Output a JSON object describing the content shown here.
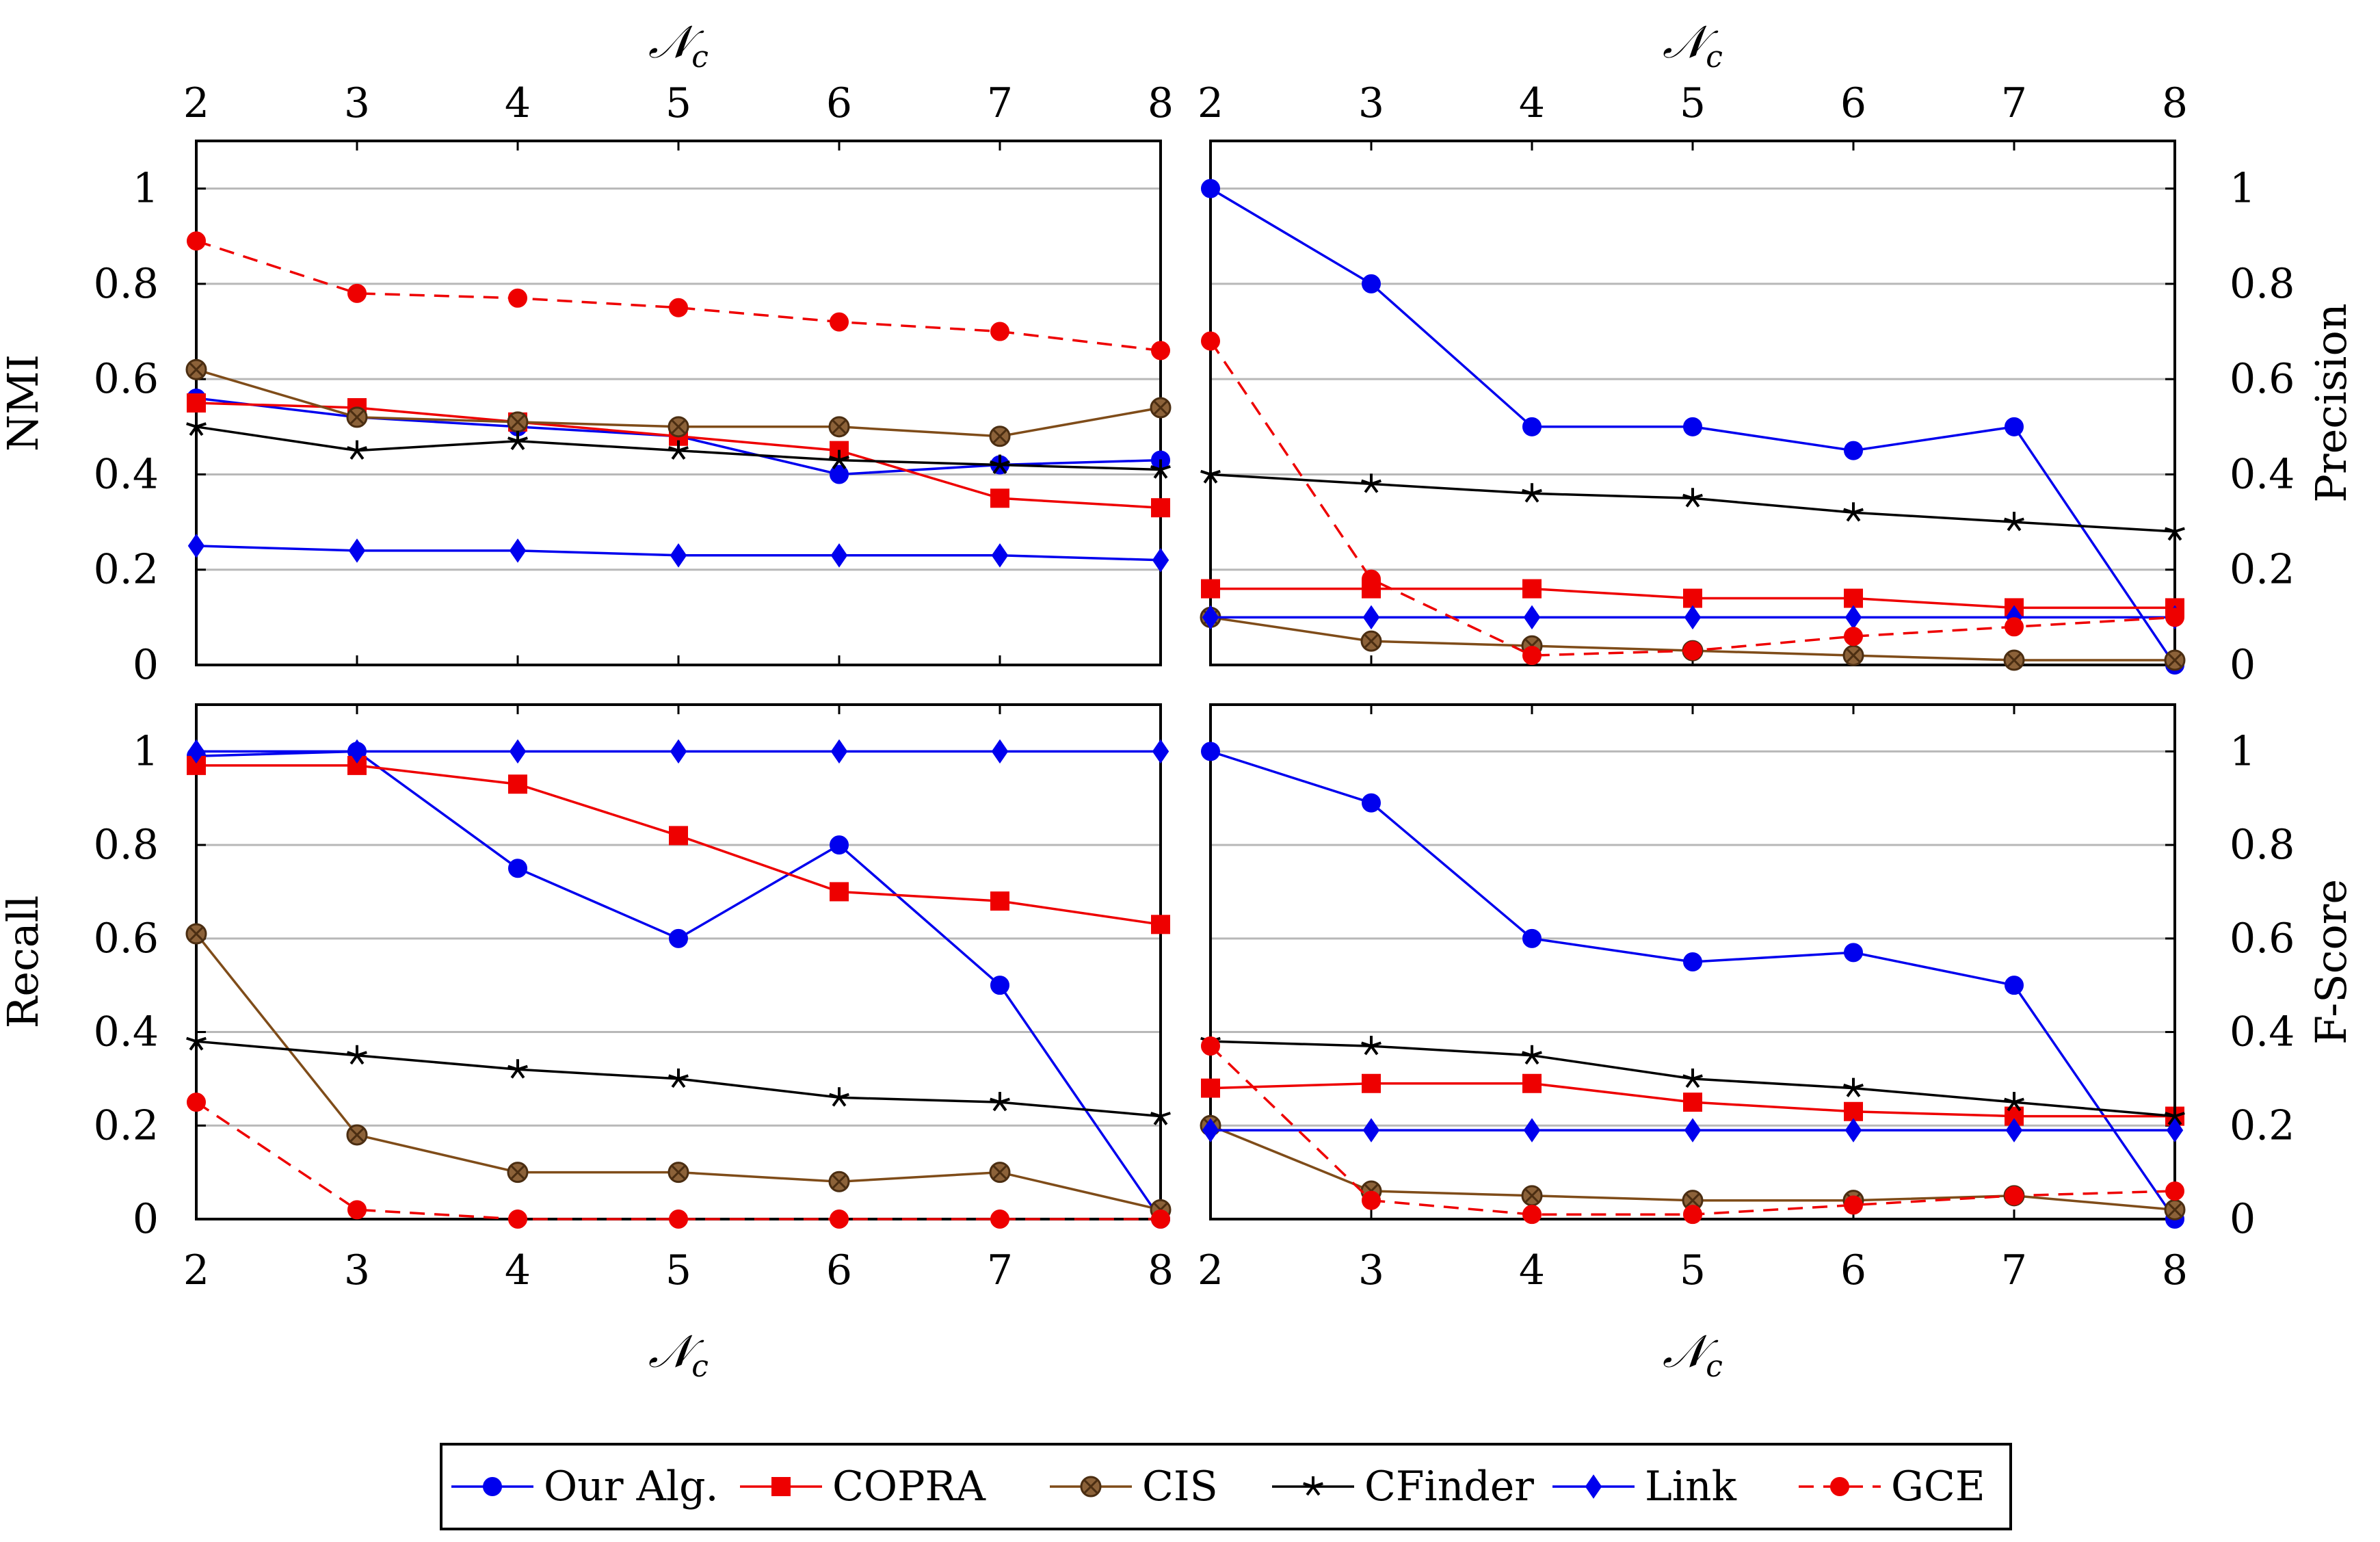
{
  "figure": {
    "legend": [
      "Our Alg.",
      "COPRA",
      "CIS",
      "CFinder",
      "Link",
      "GCE"
    ],
    "colors": {
      "Our Alg.": "#0000ee",
      "COPRA": "#ee0000",
      "CIS": "#7f4c19",
      "CFinder": "#000000",
      "Link": "#0000ee",
      "GCE": "#ee0000"
    }
  },
  "chart_data": [
    {
      "type": "line",
      "position": "top-left",
      "title": "",
      "xlabel": "𝒩",
      "xlabel_sub": "c",
      "ylabel": "NMI",
      "x": [
        2,
        3,
        4,
        5,
        6,
        7,
        8
      ],
      "xlim": [
        2,
        8
      ],
      "ylim": [
        0,
        1.1
      ],
      "yticks": [
        "0",
        "0.2",
        "0.4",
        "0.6",
        "0.8",
        "1"
      ],
      "grid": true,
      "series": [
        {
          "name": "Our Alg.",
          "values": [
            0.56,
            0.52,
            0.5,
            0.48,
            0.4,
            0.42,
            0.43
          ]
        },
        {
          "name": "COPRA",
          "values": [
            0.55,
            0.54,
            0.51,
            0.48,
            0.45,
            0.35,
            0.33
          ]
        },
        {
          "name": "CIS",
          "values": [
            0.62,
            0.52,
            0.51,
            0.5,
            0.5,
            0.48,
            0.54
          ]
        },
        {
          "name": "CFinder",
          "values": [
            0.5,
            0.45,
            0.47,
            0.45,
            0.43,
            0.42,
            0.41
          ]
        },
        {
          "name": "Link",
          "values": [
            0.25,
            0.24,
            0.24,
            0.23,
            0.23,
            0.23,
            0.22
          ]
        },
        {
          "name": "GCE",
          "values": [
            0.89,
            0.78,
            0.77,
            0.75,
            0.72,
            0.7,
            0.66
          ]
        }
      ]
    },
    {
      "type": "line",
      "position": "top-right",
      "title": "",
      "xlabel": "𝒩",
      "xlabel_sub": "c",
      "ylabel": "Precision",
      "x": [
        2,
        3,
        4,
        5,
        6,
        7,
        8
      ],
      "xlim": [
        2,
        8
      ],
      "ylim": [
        0,
        1.1
      ],
      "yticks": [
        "0",
        "0.2",
        "0.4",
        "0.6",
        "0.8",
        "1"
      ],
      "grid": true,
      "series": [
        {
          "name": "Our Alg.",
          "values": [
            1.0,
            0.8,
            0.5,
            0.5,
            0.45,
            0.5,
            0.0
          ]
        },
        {
          "name": "COPRA",
          "values": [
            0.16,
            0.16,
            0.16,
            0.14,
            0.14,
            0.12,
            0.12
          ]
        },
        {
          "name": "CIS",
          "values": [
            0.1,
            0.05,
            0.04,
            0.03,
            0.02,
            0.01,
            0.01
          ]
        },
        {
          "name": "CFinder",
          "values": [
            0.4,
            0.38,
            0.36,
            0.35,
            0.32,
            0.3,
            0.28
          ]
        },
        {
          "name": "Link",
          "values": [
            0.1,
            0.1,
            0.1,
            0.1,
            0.1,
            0.1,
            0.1
          ]
        },
        {
          "name": "GCE",
          "values": [
            0.68,
            0.18,
            0.02,
            0.03,
            0.06,
            0.08,
            0.1
          ]
        }
      ]
    },
    {
      "type": "line",
      "position": "bottom-left",
      "title": "",
      "xlabel": "𝒩",
      "xlabel_sub": "c",
      "ylabel": "Recall",
      "x": [
        2,
        3,
        4,
        5,
        6,
        7,
        8
      ],
      "xlim": [
        2,
        8
      ],
      "ylim": [
        0,
        1.1
      ],
      "yticks": [
        "0",
        "0.2",
        "0.4",
        "0.6",
        "0.8",
        "1"
      ],
      "grid": true,
      "series": [
        {
          "name": "Our Alg.",
          "values": [
            0.99,
            1.0,
            0.75,
            0.6,
            0.8,
            0.5,
            0.0
          ]
        },
        {
          "name": "COPRA",
          "values": [
            0.97,
            0.97,
            0.93,
            0.82,
            0.7,
            0.68,
            0.63
          ]
        },
        {
          "name": "CIS",
          "values": [
            0.61,
            0.18,
            0.1,
            0.1,
            0.08,
            0.1,
            0.02
          ]
        },
        {
          "name": "CFinder",
          "values": [
            0.38,
            0.35,
            0.32,
            0.3,
            0.26,
            0.25,
            0.22
          ]
        },
        {
          "name": "Link",
          "values": [
            1.0,
            1.0,
            1.0,
            1.0,
            1.0,
            1.0,
            1.0
          ]
        },
        {
          "name": "GCE",
          "values": [
            0.25,
            0.02,
            0.0,
            0.0,
            0.0,
            0.0,
            0.0
          ]
        }
      ]
    },
    {
      "type": "line",
      "position": "bottom-right",
      "title": "",
      "xlabel": "𝒩",
      "xlabel_sub": "c",
      "ylabel": "F-Score",
      "x": [
        2,
        3,
        4,
        5,
        6,
        7,
        8
      ],
      "xlim": [
        2,
        8
      ],
      "ylim": [
        0,
        1.1
      ],
      "yticks": [
        "0",
        "0.2",
        "0.4",
        "0.6",
        "0.8",
        "1"
      ],
      "grid": true,
      "series": [
        {
          "name": "Our Alg.",
          "values": [
            1.0,
            0.89,
            0.6,
            0.55,
            0.57,
            0.5,
            0.0
          ]
        },
        {
          "name": "COPRA",
          "values": [
            0.28,
            0.29,
            0.29,
            0.25,
            0.23,
            0.22,
            0.22
          ]
        },
        {
          "name": "CIS",
          "values": [
            0.2,
            0.06,
            0.05,
            0.04,
            0.04,
            0.05,
            0.02
          ]
        },
        {
          "name": "CFinder",
          "values": [
            0.38,
            0.37,
            0.35,
            0.3,
            0.28,
            0.25,
            0.22
          ]
        },
        {
          "name": "Link",
          "values": [
            0.19,
            0.19,
            0.19,
            0.19,
            0.19,
            0.19,
            0.19
          ]
        },
        {
          "name": "GCE",
          "values": [
            0.37,
            0.04,
            0.01,
            0.01,
            0.03,
            0.05,
            0.06
          ]
        }
      ]
    }
  ]
}
